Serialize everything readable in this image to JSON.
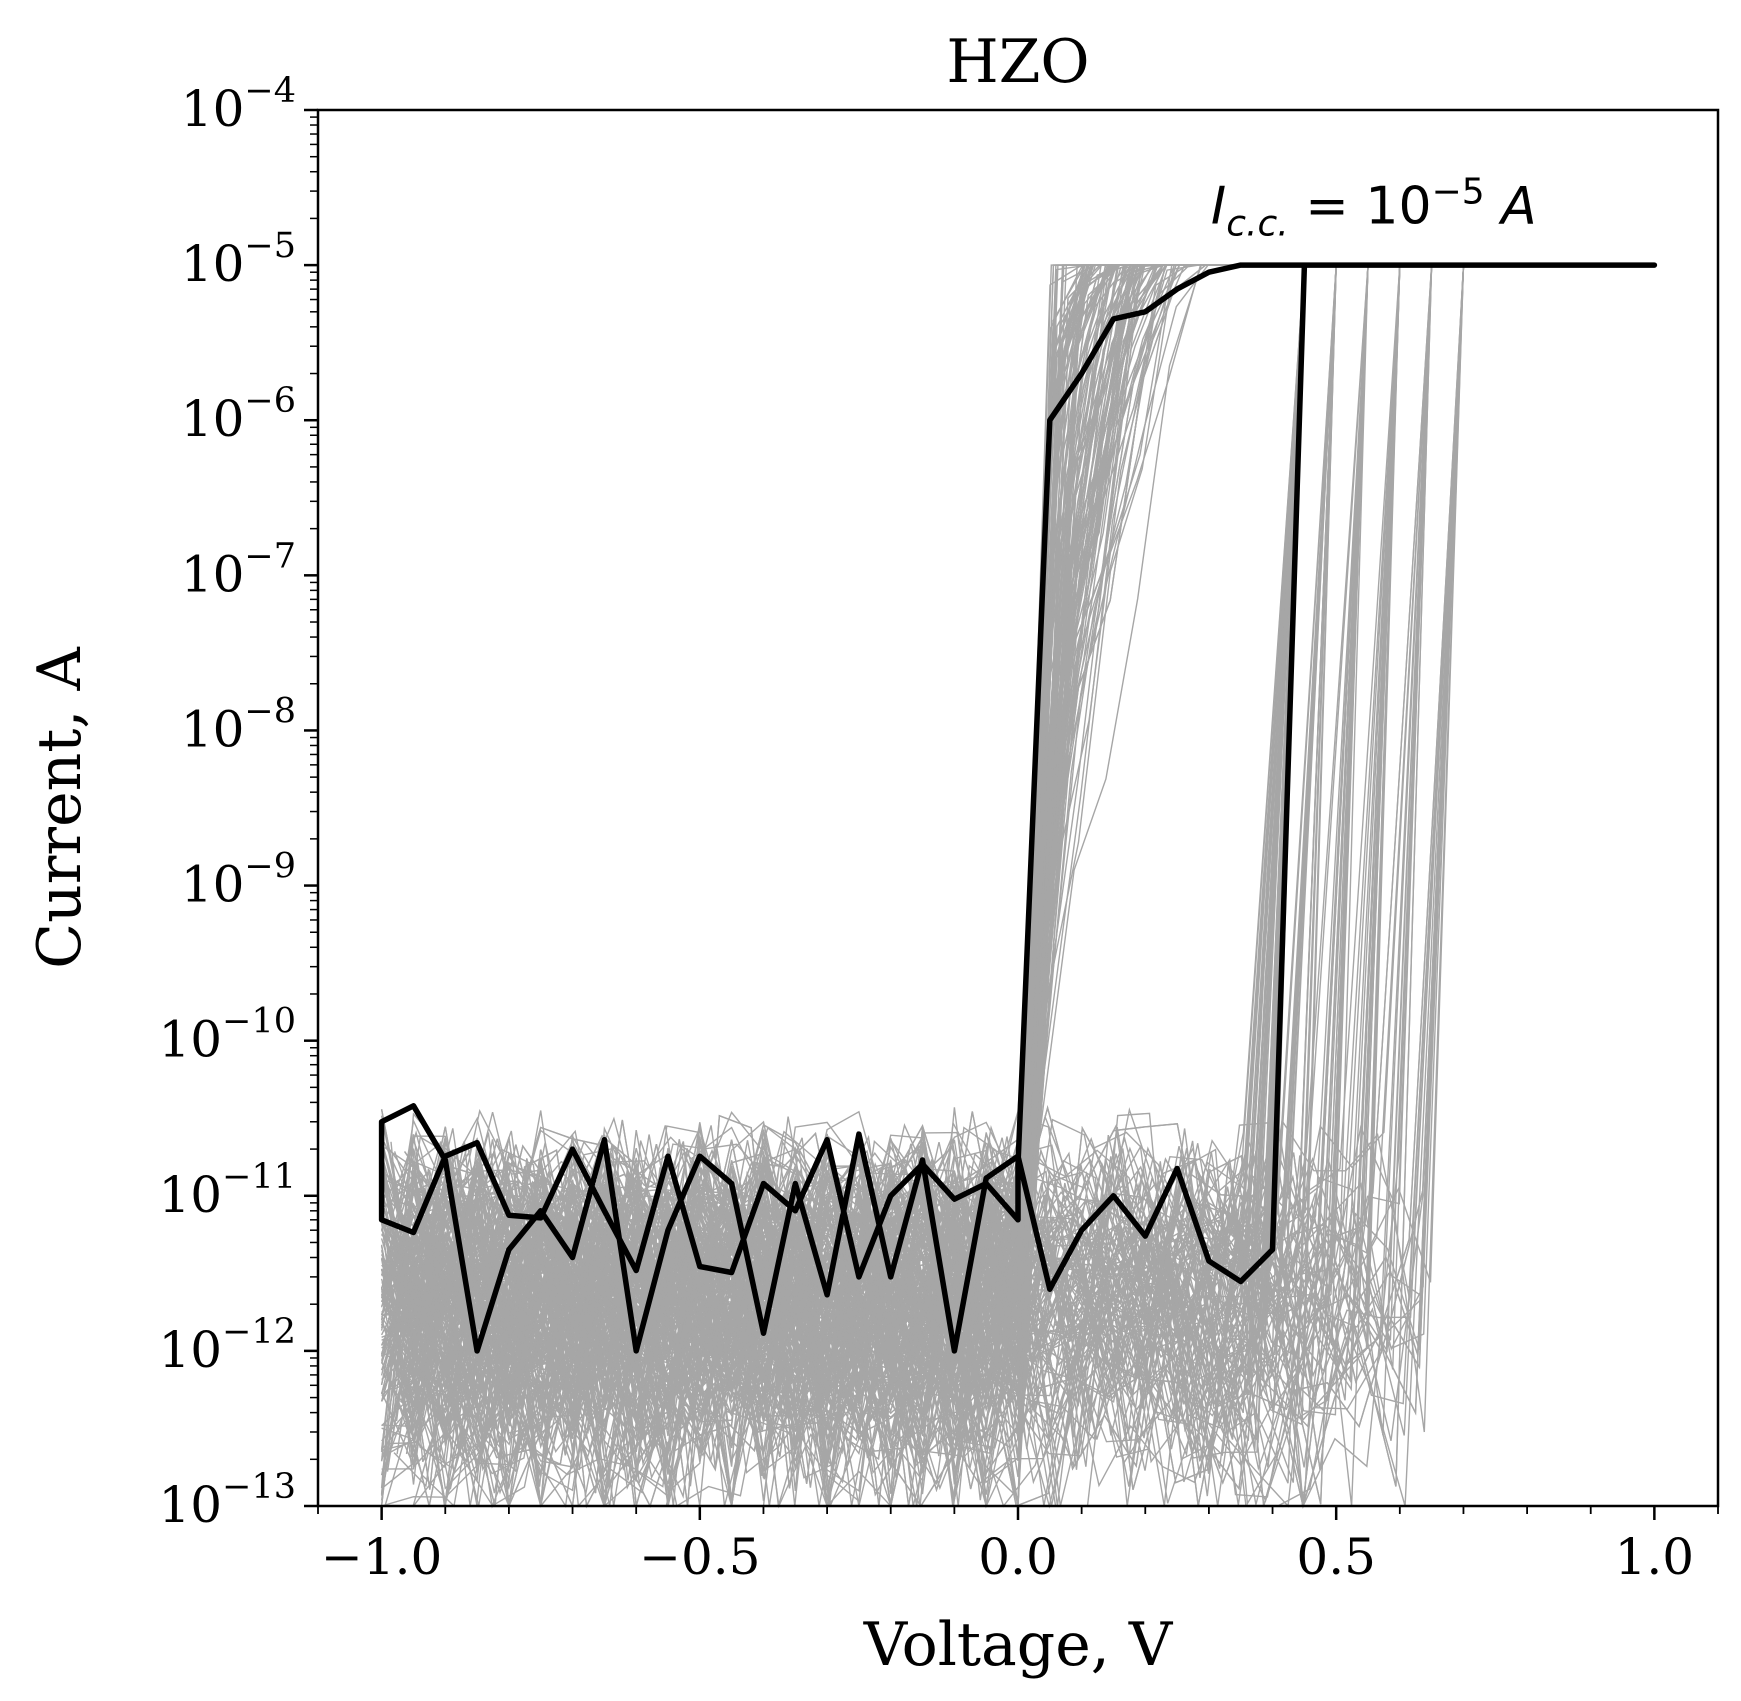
{
  "chart_data": {
    "type": "line",
    "title": "HZO",
    "xlabel": "Voltage, V",
    "ylabel": "Current, A",
    "xlim": [
      -1.1,
      1.1
    ],
    "ylim": [
      1e-13,
      0.0001
    ],
    "yscale": "log",
    "grid": false,
    "x_ticks": [
      -1.0,
      -0.5,
      0.0,
      0.5,
      1.0
    ],
    "x_tick_labels": [
      "−1.0",
      "−0.5",
      "0.0",
      "0.5",
      "1.0"
    ],
    "y_ticks": [
      1e-13,
      1e-12,
      1e-11,
      1e-10,
      1e-09,
      1e-08,
      1e-07,
      1e-06,
      1e-05,
      0.0001
    ],
    "y_tick_labels": [
      {
        "base": "10",
        "exp": "−13"
      },
      {
        "base": "10",
        "exp": "−12"
      },
      {
        "base": "10",
        "exp": "−11"
      },
      {
        "base": "10",
        "exp": "−10"
      },
      {
        "base": "10",
        "exp": "−9"
      },
      {
        "base": "10",
        "exp": "−8"
      },
      {
        "base": "10",
        "exp": "−7"
      },
      {
        "base": "10",
        "exp": "−6"
      },
      {
        "base": "10",
        "exp": "−5"
      },
      {
        "base": "10",
        "exp": "−4"
      }
    ],
    "annotation": {
      "main": "I",
      "subscript": "c.c.",
      "equals": " = 10",
      "superscript": "−5",
      "unit": " A",
      "x": 0.3,
      "y": 2e-05
    },
    "colors": {
      "highlight": "#000000",
      "background_cycles": "#a6a6a6",
      "axes": "#000000"
    },
    "highlight_series": {
      "name": "",
      "x": [
        -1.0,
        -0.95,
        -0.9,
        -0.85,
        -0.8,
        -0.75,
        -0.7,
        -0.65,
        -0.6,
        -0.55,
        -0.5,
        -0.45,
        -0.4,
        -0.35,
        -0.3,
        -0.25,
        -0.2,
        -0.15,
        -0.1,
        -0.05,
        0.0,
        0.0,
        0.05,
        0.1,
        0.15,
        0.2,
        0.25,
        0.3,
        0.35,
        0.4,
        0.45,
        0.5,
        0.55,
        0.6,
        0.65,
        0.7,
        0.75,
        0.8,
        0.85,
        0.9,
        0.95,
        1.0,
        0.95,
        0.9,
        0.85,
        0.8,
        0.75,
        0.7,
        0.65,
        0.6,
        0.55,
        0.5,
        0.45,
        0.45,
        0.4,
        0.35,
        0.3,
        0.25,
        0.2,
        0.15,
        0.1,
        0.05,
        0.0,
        -0.05,
        -0.1,
        -0.15,
        -0.2,
        -0.25,
        -0.3,
        -0.35,
        -0.4,
        -0.45,
        -0.5,
        -0.55,
        -0.6,
        -0.65,
        -0.7,
        -0.75,
        -0.8,
        -0.85,
        -0.9,
        -0.95,
        -1.0,
        -1.0
      ],
      "y": [
        7e-12,
        5.8e-12,
        1.8e-11,
        2.2e-11,
        7.5e-12,
        7.2e-12,
        2e-11,
        8e-12,
        3.3e-12,
        1.8e-11,
        3.5e-12,
        3.2e-12,
        1.2e-11,
        8e-12,
        2.3e-11,
        3e-12,
        1e-11,
        1.6e-11,
        9.5e-12,
        1.2e-11,
        7e-12,
        1.6e-11,
        1e-06,
        2e-06,
        4.5e-06,
        5e-06,
        7e-06,
        9e-06,
        1e-05,
        1e-05,
        1e-05,
        1e-05,
        1e-05,
        1e-05,
        1e-05,
        1e-05,
        1e-05,
        1e-05,
        1e-05,
        1e-05,
        1e-05,
        1e-05,
        1e-05,
        1e-05,
        1e-05,
        1e-05,
        1e-05,
        1e-05,
        1e-05,
        1e-05,
        1e-05,
        1e-05,
        1e-05,
        1e-05,
        4.5e-12,
        2.8e-12,
        3.8e-12,
        1.5e-11,
        5.5e-12,
        1e-11,
        6e-12,
        2.5e-12,
        1.8e-11,
        1.3e-11,
        1e-12,
        1.7e-11,
        3e-12,
        2.5e-11,
        2.3e-12,
        1.2e-11,
        1.3e-12,
        1.2e-11,
        1.8e-11,
        6e-12,
        1e-12,
        2.3e-11,
        4e-12,
        8e-12,
        4.5e-12,
        1e-12,
        1.7e-11,
        3.8e-11,
        3e-11,
        7e-12
      ]
    },
    "background_cycles": {
      "count": 150,
      "description_range": {
        "reset_low_current": [
          1e-13,
          4e-11
        ],
        "set_voltage": [
          0.0,
          0.1
        ],
        "reset_voltage": [
          0.4,
          0.75
        ],
        "compliance": 1e-05
      }
    }
  }
}
